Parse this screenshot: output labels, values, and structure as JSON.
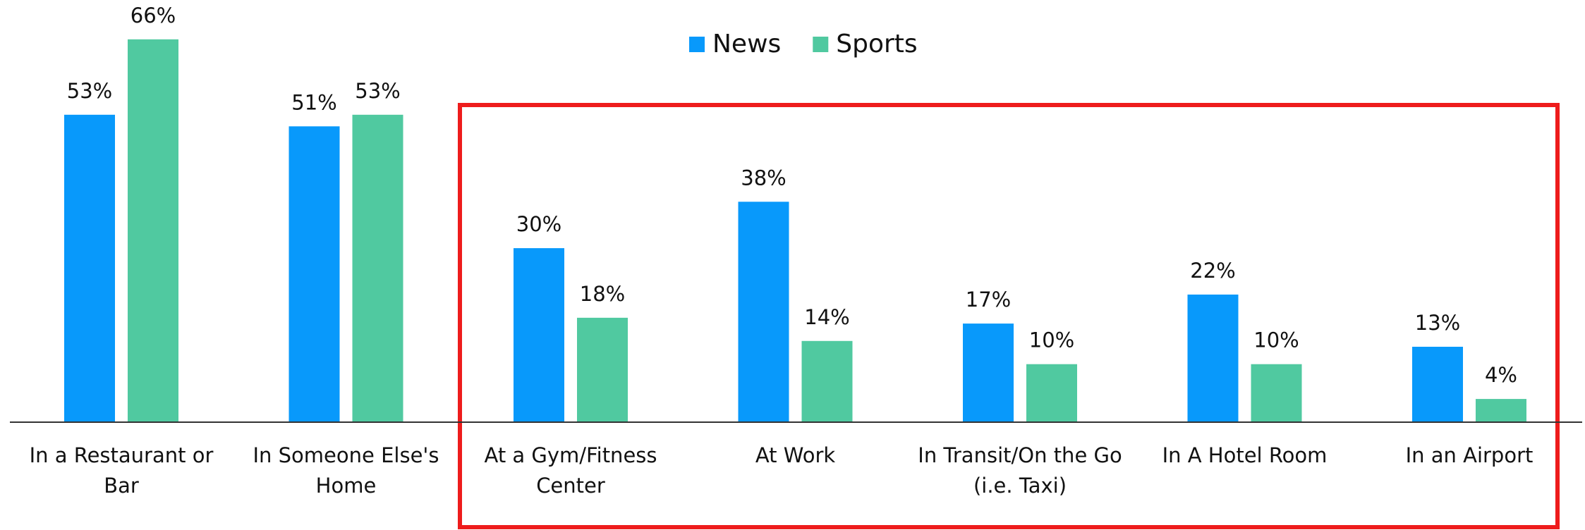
{
  "chart_data": {
    "type": "bar",
    "categories": [
      "In a Restaurant or Bar",
      "In Someone Else's Home",
      "At a Gym/Fitness Center",
      "At Work",
      "In Transit/On the Go (i.e. Taxi)",
      "In A Hotel Room",
      "In an Airport"
    ],
    "series": [
      {
        "name": "News",
        "color": "#0899fb",
        "values": [
          53,
          51,
          30,
          38,
          17,
          22,
          13
        ],
        "value_labels": [
          "53%",
          "51%",
          "30%",
          "38%",
          "17%",
          "22%",
          "13%"
        ]
      },
      {
        "name": "Sports",
        "color": "#50c9a0",
        "values": [
          66,
          53,
          18,
          14,
          10,
          10,
          4
        ],
        "value_labels": [
          "66%",
          "53%",
          "18%",
          "14%",
          "10%",
          "10%",
          "4%"
        ]
      }
    ],
    "legend": "top-center"
  }
}
